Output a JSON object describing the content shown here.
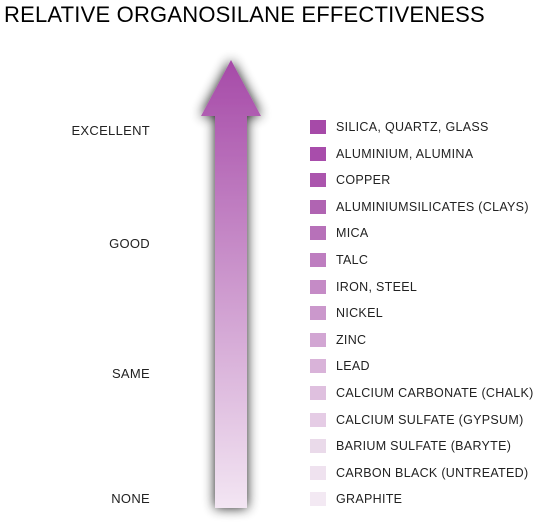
{
  "title": "RELATIVE ORGANOSILANE EFFECTIVENESS",
  "scale": {
    "excellent": "EXCELLENT",
    "good": "GOOD",
    "same": "SAME",
    "none": "NONE"
  },
  "arrow": {
    "color_top": "#a64aa8",
    "color_bottom": "#f3e6f3"
  },
  "legend": [
    {
      "label": "SILICA, QUARTZ, GLASS",
      "color": "#a64aa8"
    },
    {
      "label": "ALUMINIUM, ALUMINA",
      "color": "#a84dab"
    },
    {
      "label": "COPPER",
      "color": "#ab55ad"
    },
    {
      "label": "ALUMINIUMSILICATES  (CLAYS)",
      "color": "#b064b2"
    },
    {
      "label": "MICA",
      "color": "#b771b9"
    },
    {
      "label": "TALC",
      "color": "#be7ec0"
    },
    {
      "label": "IRON, STEEL",
      "color": "#c58bc6"
    },
    {
      "label": "NICKEL",
      "color": "#cb98cc"
    },
    {
      "label": "ZINC",
      "color": "#d2a6d3"
    },
    {
      "label": "LEAD",
      "color": "#d9b3d9"
    },
    {
      "label": "CALCIUM CARBONATE  (CHALK)",
      "color": "#dfc0df"
    },
    {
      "label": "CALCIUM SULFATE  (GYPSUM)",
      "color": "#e5cce5"
    },
    {
      "label": "BARIUM SULFATE  (BARYTE)",
      "color": "#eadaea"
    },
    {
      "label": "CARBON BLACK  (UNTREATED)",
      "color": "#efe2ef"
    },
    {
      "label": "GRAPHITE",
      "color": "#f3e9f3"
    }
  ]
}
